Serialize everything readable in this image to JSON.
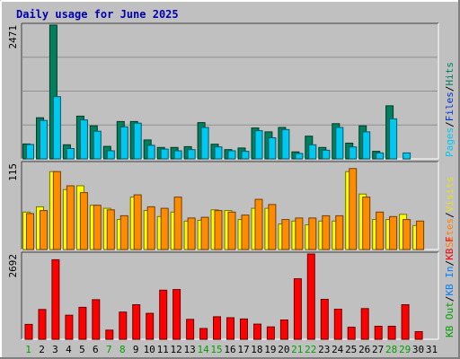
{
  "chart_data": {
    "type": "bar",
    "title": "Daily usage for June 2025",
    "categories": [
      "1",
      "2",
      "3",
      "4",
      "5",
      "6",
      "7",
      "8",
      "9",
      "10",
      "11",
      "12",
      "13",
      "14",
      "15",
      "16",
      "17",
      "18",
      "19",
      "20",
      "21",
      "22",
      "23",
      "24",
      "25",
      "26",
      "27",
      "28",
      "29",
      "30",
      "31"
    ],
    "weekend_days": [
      1,
      7,
      8,
      14,
      15,
      21,
      22,
      28,
      29
    ],
    "panels": [
      {
        "id": "requests",
        "ymax_label": "2471",
        "ymax": 2471,
        "legend": [
          {
            "text": "Hits",
            "color": "#00805c"
          },
          {
            "text": "/",
            "color": "#000000"
          },
          {
            "text": "Files",
            "color": "#0033cc"
          },
          {
            "text": "/",
            "color": "#000000"
          },
          {
            "text": "Pages",
            "color": "#00c8f0"
          }
        ],
        "series": [
          {
            "name": "Hits",
            "color": "#00805c",
            "values": [
              275,
              760,
              2471,
              260,
              790,
              610,
              230,
              690,
              690,
              350,
              210,
              210,
              225,
              670,
              270,
              170,
              200,
              570,
              500,
              580,
              130,
              420,
              210,
              650,
              290,
              610,
              140,
              980,
              0,
              0,
              0
            ]
          },
          {
            "name": "Pages",
            "color": "#00c8f0",
            "values": [
              265,
              710,
              1150,
              190,
              720,
              510,
              150,
              590,
              660,
              250,
              180,
              150,
              170,
              580,
              220,
              150,
              140,
              520,
              390,
              540,
              100,
              260,
              160,
              580,
              220,
              500,
              110,
              740,
              110,
              0,
              0
            ]
          }
        ]
      },
      {
        "id": "visits",
        "ymax_label": "115",
        "ymax": 115,
        "legend": [
          {
            "text": "Visits",
            "color": "#e8e020"
          },
          {
            "text": "/",
            "color": "#000000"
          },
          {
            "text": "Sites",
            "color": "#ff8000"
          }
        ],
        "series": [
          {
            "name": "Visits",
            "color": "#ffff00",
            "values": [
              50,
              57,
              104,
              80,
              85,
              59,
              55,
              40,
              70,
              52,
              44,
              50,
              38,
              39,
              53,
              52,
              40,
              55,
              55,
              34,
              38,
              33,
              38,
              38,
              104,
              74,
              40,
              40,
              47,
              32,
              0
            ]
          },
          {
            "name": "Sites",
            "color": "#ff8c00",
            "values": [
              48,
              52,
              104,
              85,
              76,
              59,
              53,
              45,
              73,
              57,
              55,
              70,
              42,
              43,
              52,
              50,
              46,
              67,
              60,
              40,
              42,
              42,
              45,
              45,
              108,
              70,
              50,
              44,
              40,
              38,
              0
            ]
          }
        ]
      },
      {
        "id": "kbytes",
        "ymax_label": "2692",
        "ymax": 2692,
        "legend": [
          {
            "text": "KB F",
            "color": "#ff0000"
          },
          {
            "text": "/",
            "color": "#000000"
          },
          {
            "text": "KB In",
            "color": "#0080ff"
          },
          {
            "text": "/",
            "color": "#000000"
          },
          {
            "text": "KB Out",
            "color": "#00a000"
          }
        ],
        "series": [
          {
            "name": "KB F",
            "color": "#ff0000",
            "values": [
              470,
              940,
              2510,
              760,
              1010,
              1250,
              290,
              860,
              1090,
              820,
              1550,
              1570,
              630,
              340,
              710,
              680,
              640,
              480,
              390,
              610,
              1910,
              2692,
              1260,
              950,
              380,
              970,
              410,
              410,
              1090,
              240,
              0
            ]
          }
        ]
      }
    ]
  }
}
